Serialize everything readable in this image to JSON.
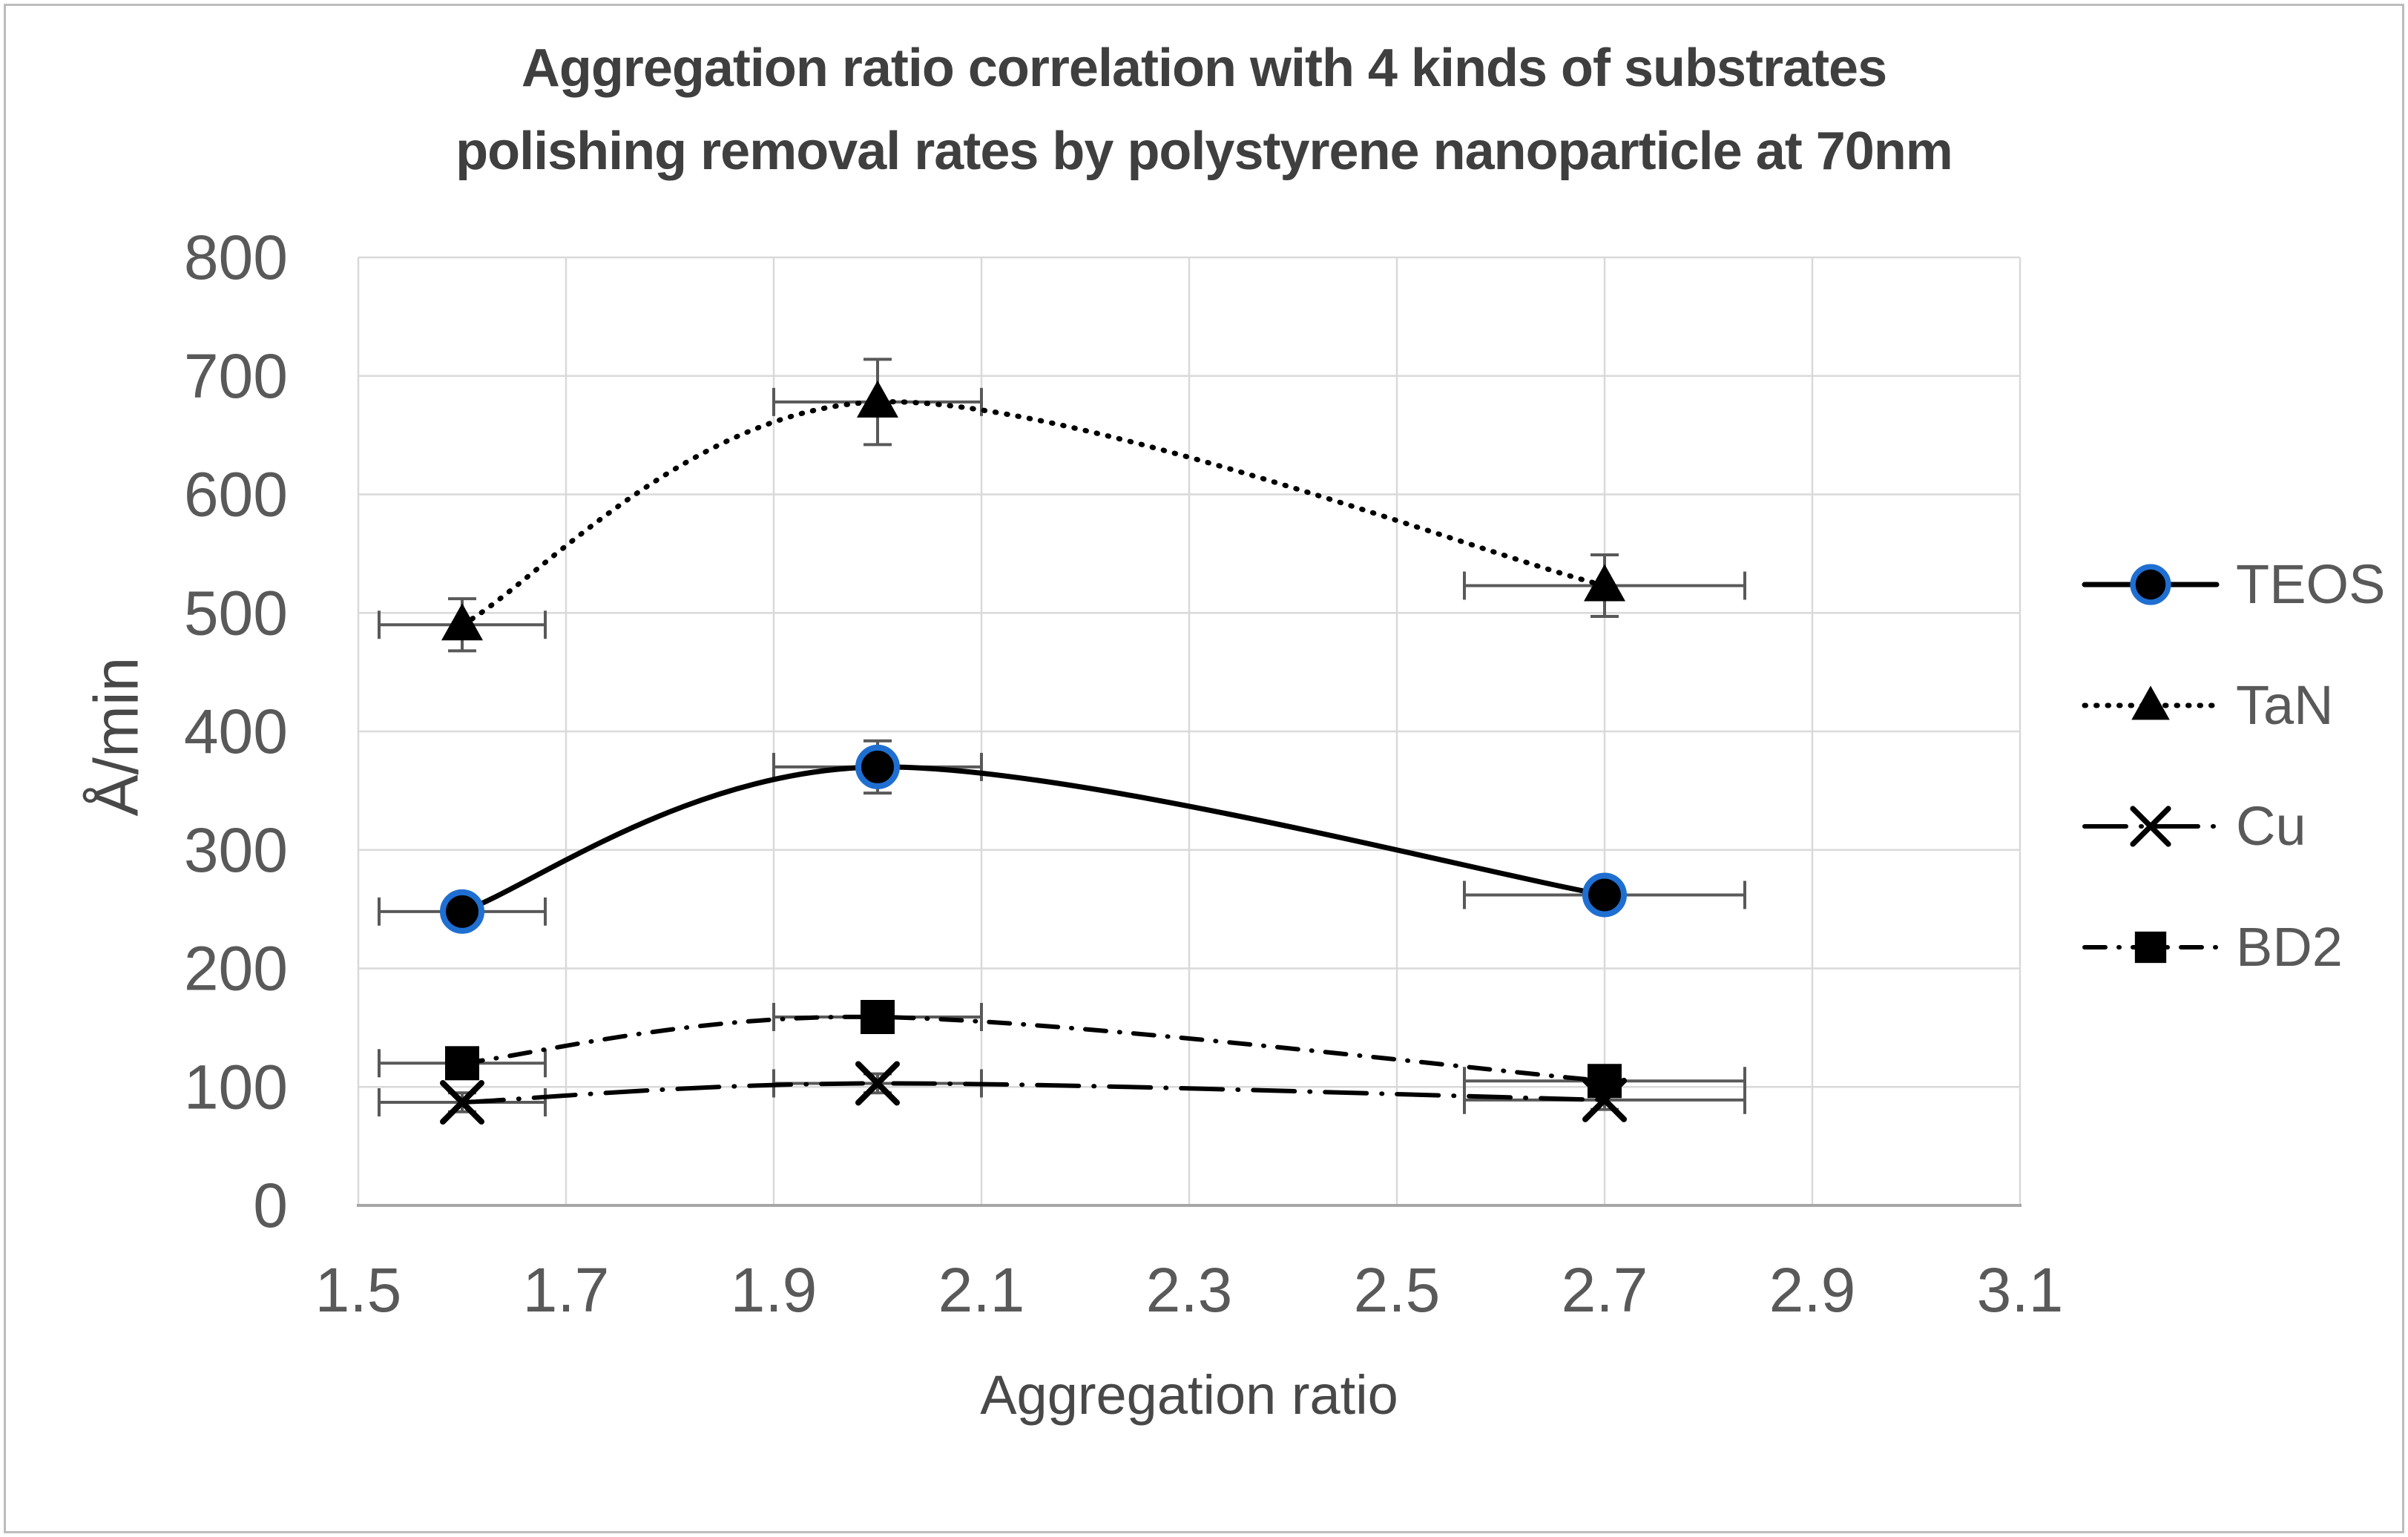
{
  "chart_data": {
    "type": "line",
    "title": "Aggregation ratio correlation with 4 kinds of substrates polishing removal rates by polystyrene nanoparticle at 70nm",
    "title_lines": [
      "Aggregation ratio correlation with 4 kinds of substrates",
      "polishing removal rates by polystyrene nanoparticle at 70nm"
    ],
    "xlabel": "Aggregation ratio",
    "ylabel": "Å/min",
    "xlim": [
      1.5,
      3.1
    ],
    "ylim": [
      0,
      800
    ],
    "grid": true,
    "legend_position": "right",
    "xticks": [
      {
        "v": 1.5,
        "label": "1.5"
      },
      {
        "v": 1.7,
        "label": "1.7"
      },
      {
        "v": 1.9,
        "label": "1.9"
      },
      {
        "v": 2.1,
        "label": "2.1"
      },
      {
        "v": 2.3,
        "label": "2.3"
      },
      {
        "v": 2.5,
        "label": "2.5"
      },
      {
        "v": 2.7,
        "label": "2.7"
      },
      {
        "v": 2.9,
        "label": "2.9"
      },
      {
        "v": 3.1,
        "label": "3.1"
      }
    ],
    "yticks": [
      {
        "v": 0,
        "label": "0"
      },
      {
        "v": 100,
        "label": "100"
      },
      {
        "v": 200,
        "label": "200"
      },
      {
        "v": 300,
        "label": "300"
      },
      {
        "v": 400,
        "label": "400"
      },
      {
        "v": 500,
        "label": "500"
      },
      {
        "v": 600,
        "label": "600"
      },
      {
        "v": 700,
        "label": "700"
      },
      {
        "v": 800,
        "label": "800"
      }
    ],
    "series": [
      {
        "name": "TEOS",
        "line_style": "solid",
        "marker": "circle",
        "color": "#000000",
        "marker_ring": "#1f6fd2",
        "x": [
          1.6,
          2.0,
          2.7
        ],
        "y": [
          248,
          370,
          262
        ],
        "x_err": [
          0.08,
          0.1,
          0.135
        ],
        "y_err": [
          12,
          22,
          12
        ]
      },
      {
        "name": "TaN",
        "line_style": "dotted",
        "marker": "triangle",
        "color": "#000000",
        "x": [
          1.6,
          2.0,
          2.7
        ],
        "y": [
          490,
          678,
          523
        ],
        "x_err": [
          0.08,
          0.1,
          0.135
        ],
        "y_err": [
          22,
          36,
          26
        ]
      },
      {
        "name": "Cu",
        "line_style": "long-dash-dot",
        "marker": "x",
        "color": "#000000",
        "x": [
          1.6,
          2.0,
          2.7
        ],
        "y": [
          87,
          103,
          89
        ],
        "x_err": [
          0.08,
          0.1,
          0.135
        ],
        "y_err": [
          8,
          8,
          8
        ]
      },
      {
        "name": "BD2",
        "line_style": "dash-dot",
        "marker": "square",
        "color": "#000000",
        "x": [
          1.6,
          2.0,
          2.7
        ],
        "y": [
          120,
          159,
          105
        ],
        "x_err": [
          0.08,
          0.1,
          0.135
        ],
        "y_err": [
          8,
          8,
          8
        ]
      }
    ],
    "colors": {
      "grid": "#d9d9d9",
      "axis_line": "#a6a6a6",
      "error_bar": "#595959",
      "tick_label": "#595959",
      "title": "#3f3f3f",
      "axis_title": "#484848",
      "background": "#ffffff",
      "frame_border": "#bdbdbd"
    }
  }
}
